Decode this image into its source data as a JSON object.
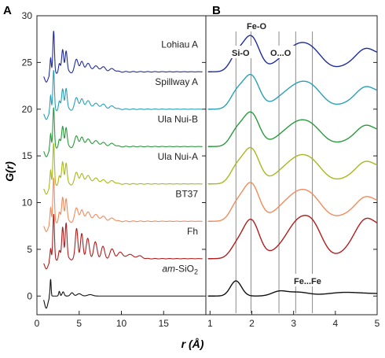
{
  "figure": {
    "panel_letters": [
      "A",
      "B"
    ],
    "y_axis_title": "G(r)",
    "x_axis_title": "r (Å)"
  },
  "chart_data": [
    {
      "type": "line",
      "panel": "A",
      "xlim": [
        0,
        20
      ],
      "ylim": [
        -2,
        30
      ],
      "x_ticks": [
        0,
        5,
        10,
        15
      ],
      "y_ticks": [
        0,
        5,
        10,
        15,
        20,
        25,
        30
      ],
      "grid": false,
      "series": [
        {
          "name": "Lohiau A",
          "offset": 24,
          "color": "#1f2d9c",
          "peaks": [
            [
              1.62,
              1.6,
              0.07
            ],
            [
              1.98,
              4.2,
              0.09
            ],
            [
              2.65,
              0.8,
              0.1
            ],
            [
              3.05,
              2.4,
              0.12
            ],
            [
              3.45,
              2.2,
              0.12
            ],
            [
              4.7,
              1.3,
              0.2
            ],
            [
              5.3,
              1.0,
              0.2
            ],
            [
              6.0,
              0.9,
              0.25
            ],
            [
              6.9,
              0.6,
              0.3
            ],
            [
              7.8,
              0.5,
              0.3
            ],
            [
              8.9,
              0.3,
              0.35
            ]
          ]
        },
        {
          "name": "Spillway A",
          "offset": 20,
          "color": "#2a9fb8",
          "peaks": [
            [
              1.62,
              1.6,
              0.07
            ],
            [
              1.98,
              4.0,
              0.09
            ],
            [
              2.65,
              0.8,
              0.1
            ],
            [
              3.05,
              2.2,
              0.12
            ],
            [
              3.45,
              2.2,
              0.12
            ],
            [
              4.7,
              1.2,
              0.2
            ],
            [
              5.3,
              1.0,
              0.2
            ],
            [
              6.0,
              0.9,
              0.25
            ],
            [
              6.9,
              0.6,
              0.3
            ],
            [
              7.8,
              0.5,
              0.3
            ],
            [
              8.9,
              0.3,
              0.35
            ]
          ]
        },
        {
          "name": "Ula Nui-B",
          "offset": 16,
          "color": "#2a9a3c",
          "peaks": [
            [
              1.62,
              1.5,
              0.07
            ],
            [
              1.98,
              4.0,
              0.09
            ],
            [
              2.65,
              0.7,
              0.1
            ],
            [
              3.05,
              2.2,
              0.12
            ],
            [
              3.45,
              2.0,
              0.12
            ],
            [
              4.7,
              1.1,
              0.2
            ],
            [
              5.3,
              0.9,
              0.2
            ],
            [
              6.0,
              0.8,
              0.25
            ],
            [
              6.9,
              0.6,
              0.3
            ],
            [
              7.8,
              0.4,
              0.3
            ],
            [
              8.9,
              0.3,
              0.35
            ]
          ]
        },
        {
          "name": "Ula Nui-A",
          "offset": 12,
          "color": "#a8b81e",
          "peaks": [
            [
              1.62,
              1.6,
              0.07
            ],
            [
              1.98,
              4.2,
              0.09
            ],
            [
              2.65,
              0.8,
              0.1
            ],
            [
              3.05,
              2.4,
              0.12
            ],
            [
              3.45,
              2.2,
              0.12
            ],
            [
              4.7,
              1.2,
              0.2
            ],
            [
              5.3,
              1.0,
              0.2
            ],
            [
              6.0,
              0.9,
              0.25
            ],
            [
              6.9,
              0.6,
              0.3
            ],
            [
              7.8,
              0.4,
              0.3
            ],
            [
              8.9,
              0.3,
              0.35
            ]
          ]
        },
        {
          "name": "BT37",
          "offset": 8,
          "color": "#f28a5a",
          "peaks": [
            [
              1.62,
              1.6,
              0.07
            ],
            [
              1.98,
              4.5,
              0.09
            ],
            [
              2.65,
              0.9,
              0.1
            ],
            [
              3.05,
              2.6,
              0.12
            ],
            [
              3.45,
              2.4,
              0.12
            ],
            [
              4.7,
              1.4,
              0.2
            ],
            [
              5.3,
              1.1,
              0.2
            ],
            [
              6.0,
              1.0,
              0.25
            ],
            [
              6.9,
              0.7,
              0.3
            ],
            [
              7.8,
              0.5,
              0.3
            ],
            [
              8.9,
              0.3,
              0.35
            ]
          ]
        },
        {
          "name": "Fh",
          "offset": 4,
          "color": "#b01e1e",
          "peaks": [
            [
              1.62,
              1.2,
              0.07
            ],
            [
              1.98,
              4.6,
              0.09
            ],
            [
              2.65,
              0.8,
              0.1
            ],
            [
              3.05,
              3.4,
              0.11
            ],
            [
              3.45,
              3.8,
              0.11
            ],
            [
              4.7,
              3.2,
              0.15
            ],
            [
              5.3,
              2.6,
              0.15
            ],
            [
              6.0,
              2.2,
              0.18
            ],
            [
              6.9,
              1.8,
              0.2
            ],
            [
              7.8,
              1.3,
              0.2
            ],
            [
              8.9,
              1.0,
              0.25
            ],
            [
              9.9,
              0.7,
              0.3
            ],
            [
              11.0,
              0.5,
              0.3
            ],
            [
              12.1,
              0.3,
              0.35
            ]
          ]
        },
        {
          "name": "am-SiO2",
          "name_italic": "am",
          "name_rest": "-SiO",
          "name_sub": "2",
          "offset": 0,
          "color": "#111111",
          "peaks": [
            [
              1.62,
              1.8,
              0.06
            ],
            [
              2.65,
              0.5,
              0.08
            ],
            [
              3.1,
              0.45,
              0.12
            ],
            [
              4.15,
              0.35,
              0.18
            ],
            [
              5.0,
              0.25,
              0.25
            ],
            [
              6.3,
              0.15,
              0.3
            ]
          ]
        }
      ]
    },
    {
      "type": "line",
      "panel": "B",
      "xlim": [
        0.9,
        5
      ],
      "x_ticks": [
        1,
        2,
        3,
        4,
        5
      ],
      "grid": false,
      "reference_lines": [
        1.62,
        1.98,
        2.65,
        3.05,
        3.45
      ],
      "annotations": [
        "Si-O",
        "Fe-O",
        "O...O",
        "Fe...Fe"
      ]
    }
  ]
}
